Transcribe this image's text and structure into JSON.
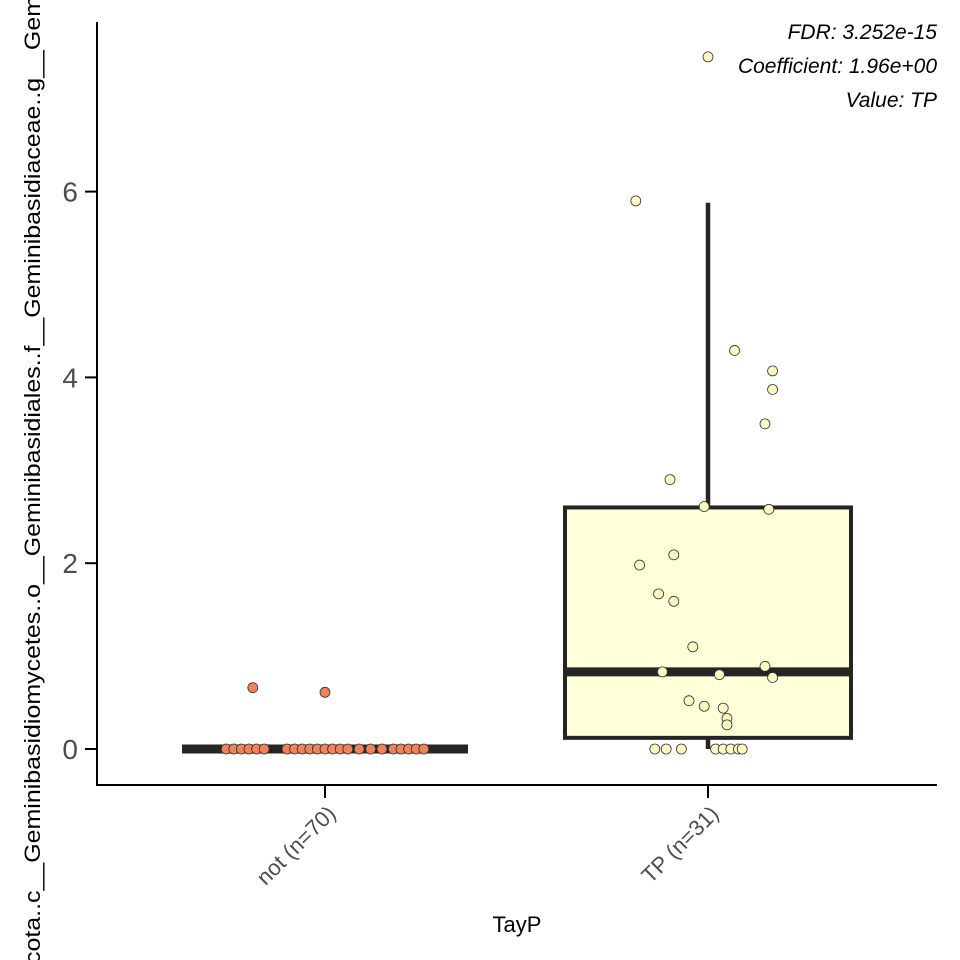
{
  "chart_data": {
    "type": "box",
    "xlabel": "TayP",
    "ylabel": "cota..c__Geminibasidiomycetes..o__Geminibasidiales..f__Geminibasidiaceae..g__Gem",
    "ylim": [
      -0.38,
      7.9
    ],
    "yticks": [
      0,
      2,
      4,
      6
    ],
    "grid": false,
    "annotations": [
      "FDR: 3.252e-15",
      "Coefficient: 1.96e+00",
      "Value: TP"
    ],
    "categories": [
      "not (n=70)",
      "TP (n=31)"
    ],
    "groups": [
      {
        "label": "not (n=70)",
        "fill": "#fffbe6",
        "point_color": "#f0825a",
        "box": {
          "q1": 0,
          "median": 0,
          "q3": 0,
          "whisker_low": 0,
          "whisker_high": 0
        },
        "points": [
          [
            -0.19,
            0.66
          ],
          [
            0.0,
            0.61
          ],
          [
            -0.26,
            0
          ],
          [
            -0.24,
            0
          ],
          [
            -0.22,
            0
          ],
          [
            -0.2,
            0
          ],
          [
            -0.18,
            0
          ],
          [
            -0.16,
            0
          ],
          [
            -0.1,
            0
          ],
          [
            -0.08,
            0
          ],
          [
            -0.06,
            0
          ],
          [
            -0.04,
            0
          ],
          [
            -0.02,
            0
          ],
          [
            0.0,
            0
          ],
          [
            0.02,
            0
          ],
          [
            0.04,
            0
          ],
          [
            0.06,
            0
          ],
          [
            0.09,
            0
          ],
          [
            0.12,
            0
          ],
          [
            0.15,
            0
          ],
          [
            0.18,
            0
          ],
          [
            0.2,
            0
          ],
          [
            0.22,
            0
          ],
          [
            0.24,
            0
          ],
          [
            0.26,
            0
          ]
        ]
      },
      {
        "label": "TP (n=31)",
        "fill": "#ffffd9",
        "point_color": "#fdf8c2",
        "box": {
          "q1": 0.12,
          "median": 0.83,
          "q3": 2.6,
          "whisker_low": 0,
          "whisker_high": 5.88
        },
        "points": [
          [
            0.0,
            7.45
          ],
          [
            -0.19,
            5.9
          ],
          [
            0.07,
            4.29
          ],
          [
            0.17,
            4.07
          ],
          [
            0.17,
            3.87
          ],
          [
            0.15,
            3.5
          ],
          [
            -0.1,
            2.9
          ],
          [
            -0.01,
            2.61
          ],
          [
            0.16,
            2.58
          ],
          [
            -0.09,
            2.09
          ],
          [
            -0.18,
            1.98
          ],
          [
            -0.13,
            1.67
          ],
          [
            -0.09,
            1.59
          ],
          [
            -0.04,
            1.1
          ],
          [
            0.15,
            0.89
          ],
          [
            -0.12,
            0.83
          ],
          [
            0.03,
            0.8
          ],
          [
            0.17,
            0.77
          ],
          [
            -0.05,
            0.52
          ],
          [
            -0.01,
            0.46
          ],
          [
            0.04,
            0.44
          ],
          [
            0.05,
            0.33
          ],
          [
            0.05,
            0.26
          ],
          [
            -0.14,
            0
          ],
          [
            -0.11,
            0
          ],
          [
            -0.07,
            0
          ],
          [
            0.02,
            0
          ],
          [
            0.04,
            0
          ],
          [
            0.06,
            0
          ],
          [
            0.08,
            0
          ],
          [
            0.09,
            0
          ]
        ]
      }
    ]
  }
}
